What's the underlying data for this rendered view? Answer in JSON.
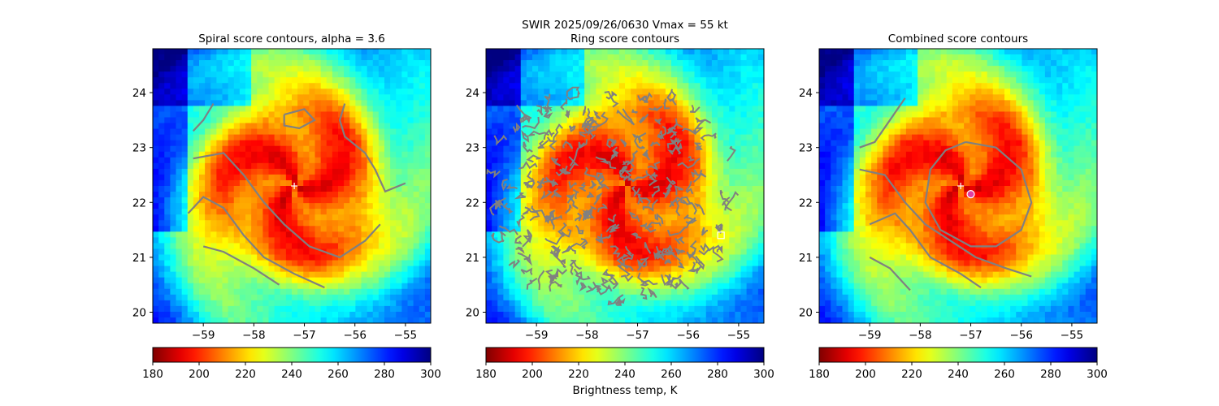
{
  "suptitle_line1": "SWIR  2025/09/26/0630    Vmax = 55 kt",
  "panels": [
    {
      "id": "spiral",
      "title": "Spiral score contours, alpha =  3.6"
    },
    {
      "id": "ring",
      "title": "Ring score contours"
    },
    {
      "id": "combined",
      "title": "Combined score contours"
    }
  ],
  "colorbar_label": "Brightness temp, K",
  "colors": {
    "contour": "#808080",
    "marker_plus": "#ffffff",
    "marker_square": "#ffffff",
    "marker_circle": "#e040a0"
  },
  "chart_data": {
    "type": "heatmap",
    "colormap": "jet_r",
    "xlim": [
      -60.0,
      -54.5
    ],
    "ylim": [
      19.8,
      24.8
    ],
    "xticks": [
      -59,
      -58,
      -57,
      -56,
      -55
    ],
    "yticks": [
      20,
      21,
      22,
      23,
      24
    ],
    "colorbar_range": [
      180,
      300
    ],
    "colorbar_ticks": [
      180,
      200,
      220,
      240,
      260,
      280,
      300
    ],
    "storm_center": [
      -57.2,
      22.3
    ],
    "ring_marker": [
      -55.35,
      21.4
    ],
    "combined_marker": [
      -57.0,
      22.15
    ],
    "spiral_contours": [
      [
        [
          -59.2,
          22.8
        ],
        [
          -58.6,
          22.9
        ],
        [
          -58.2,
          22.5
        ],
        [
          -57.8,
          22.0
        ],
        [
          -57.4,
          21.6
        ],
        [
          -56.9,
          21.2
        ],
        [
          -56.3,
          21.0
        ],
        [
          -55.8,
          21.3
        ],
        [
          -55.5,
          21.6
        ]
      ],
      [
        [
          -59.3,
          21.8
        ],
        [
          -59.0,
          22.1
        ],
        [
          -58.6,
          21.9
        ],
        [
          -58.2,
          21.4
        ],
        [
          -57.8,
          21.0
        ],
        [
          -57.2,
          20.7
        ],
        [
          -56.6,
          20.45
        ]
      ],
      [
        [
          -59.0,
          21.2
        ],
        [
          -58.6,
          21.1
        ],
        [
          -58.0,
          20.8
        ],
        [
          -57.5,
          20.5
        ]
      ],
      [
        [
          -59.2,
          23.3
        ],
        [
          -59.0,
          23.5
        ],
        [
          -58.8,
          23.8
        ]
      ],
      [
        [
          -56.2,
          23.8
        ],
        [
          -56.3,
          23.5
        ],
        [
          -56.2,
          23.2
        ],
        [
          -55.8,
          22.9
        ],
        [
          -55.6,
          22.6
        ],
        [
          -55.4,
          22.2
        ],
        [
          -55.0,
          22.35
        ]
      ],
      [
        [
          -57.4,
          23.6
        ],
        [
          -57.0,
          23.7
        ],
        [
          -56.8,
          23.5
        ],
        [
          -57.1,
          23.35
        ],
        [
          -57.4,
          23.4
        ],
        [
          -57.4,
          23.6
        ]
      ]
    ],
    "ring_contour_region": {
      "center": [
        -57.5,
        22.2
      ],
      "radius_deg": 2.4
    },
    "combined_contours": [
      [
        [
          -57.1,
          23.1
        ],
        [
          -56.5,
          23.0
        ],
        [
          -56.0,
          22.6
        ],
        [
          -55.8,
          22.0
        ],
        [
          -56.0,
          21.5
        ],
        [
          -56.5,
          21.2
        ],
        [
          -57.0,
          21.2
        ],
        [
          -57.6,
          21.5
        ],
        [
          -57.9,
          22.0
        ],
        [
          -57.8,
          22.6
        ],
        [
          -57.5,
          22.95
        ],
        [
          -57.1,
          23.1
        ]
      ],
      [
        [
          -59.2,
          23.0
        ],
        [
          -58.9,
          23.1
        ],
        [
          -58.6,
          23.5
        ],
        [
          -58.3,
          23.9
        ]
      ],
      [
        [
          -59.2,
          22.6
        ],
        [
          -58.7,
          22.5
        ],
        [
          -58.3,
          22.0
        ],
        [
          -57.9,
          21.6
        ],
        [
          -57.4,
          21.3
        ],
        [
          -56.9,
          21.0
        ],
        [
          -56.3,
          20.8
        ],
        [
          -55.8,
          20.65
        ]
      ],
      [
        [
          -59.0,
          21.6
        ],
        [
          -58.5,
          21.8
        ],
        [
          -58.2,
          21.5
        ],
        [
          -57.8,
          21.0
        ],
        [
          -57.2,
          20.7
        ],
        [
          -56.8,
          20.45
        ]
      ],
      [
        [
          -59.0,
          21.0
        ],
        [
          -58.6,
          20.8
        ],
        [
          -58.2,
          20.4
        ]
      ]
    ]
  }
}
